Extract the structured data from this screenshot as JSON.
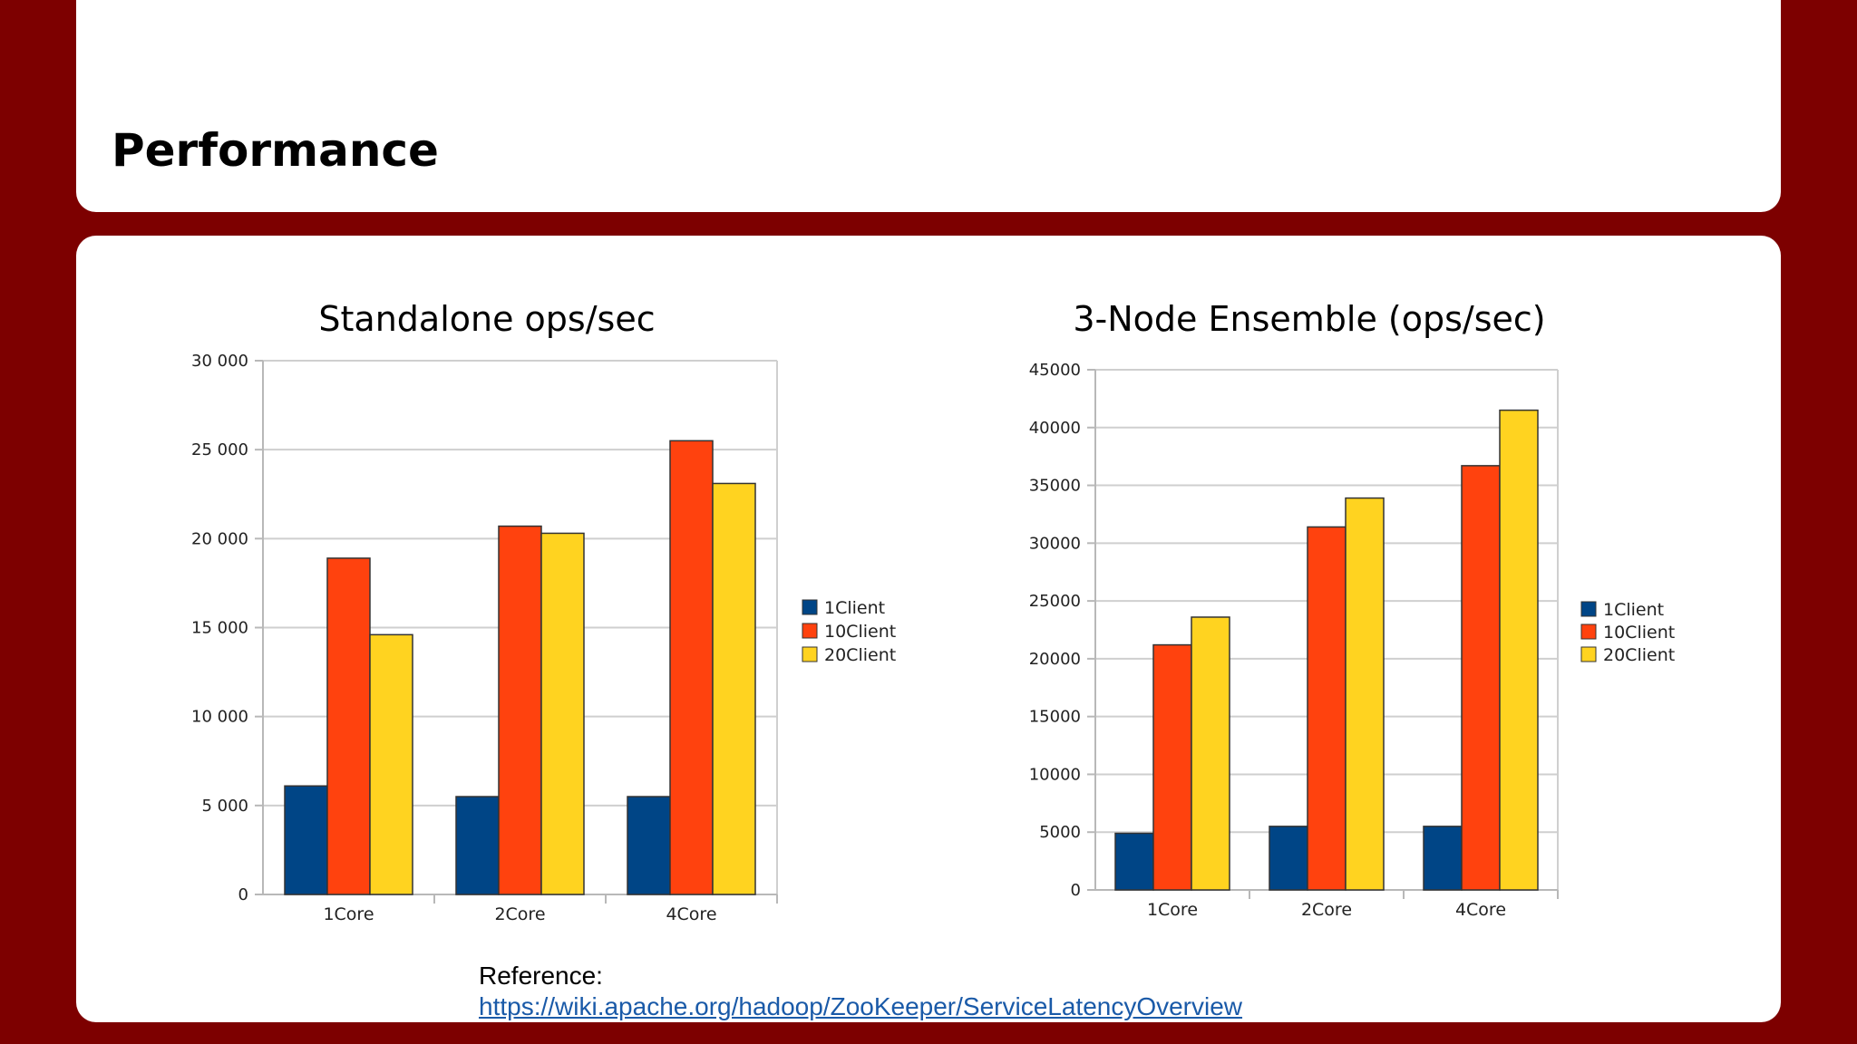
{
  "slide": {
    "title": "Performance",
    "reference_label": "Reference:",
    "reference_link": "https://wiki.apache.org/hadoop/ZooKeeper/ServiceLatencyOverview"
  },
  "colors": {
    "background": "#7d0000",
    "series": [
      "#004586",
      "#ff420e",
      "#ffd320"
    ]
  },
  "chart_data": [
    {
      "type": "bar",
      "title": "Standalone ops/sec",
      "categories": [
        "1Core",
        "2Core",
        "4Core"
      ],
      "series": [
        {
          "name": "1Client",
          "values": [
            6100,
            5500,
            5500
          ]
        },
        {
          "name": "10Client",
          "values": [
            18900,
            20700,
            25500
          ]
        },
        {
          "name": "20Client",
          "values": [
            14600,
            20300,
            23100
          ]
        }
      ],
      "ylim": [
        0,
        30000
      ],
      "yticks": [
        0,
        5000,
        10000,
        15000,
        20000,
        25000,
        30000
      ],
      "ytick_labels": [
        "0",
        "5 000",
        "10 000",
        "15 000",
        "20 000",
        "25 000",
        "30 000"
      ],
      "grid": true,
      "legend": "right"
    },
    {
      "type": "bar",
      "title": "3-Node Ensemble (ops/sec)",
      "categories": [
        "1Core",
        "2Core",
        "4Core"
      ],
      "series": [
        {
          "name": "1Client",
          "values": [
            4900,
            5500,
            5500
          ]
        },
        {
          "name": "10Client",
          "values": [
            21200,
            31400,
            36700
          ]
        },
        {
          "name": "20Client",
          "values": [
            23600,
            33900,
            41500
          ]
        }
      ],
      "ylim": [
        0,
        45000
      ],
      "yticks": [
        0,
        5000,
        10000,
        15000,
        20000,
        25000,
        30000,
        35000,
        40000,
        45000
      ],
      "ytick_labels": [
        "0",
        "5000",
        "10000",
        "15000",
        "20000",
        "25000",
        "30000",
        "35000",
        "40000",
        "45000"
      ],
      "grid": true,
      "legend": "right"
    }
  ]
}
